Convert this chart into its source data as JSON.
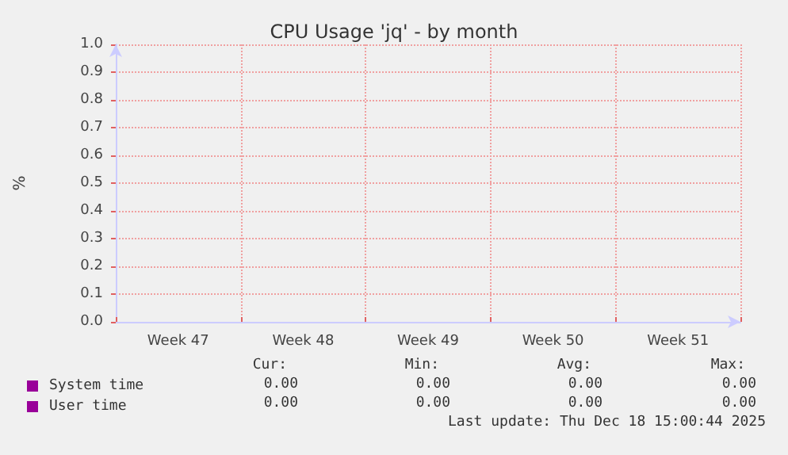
{
  "chart_data": {
    "type": "line",
    "title": "CPU Usage 'jq' - by month",
    "ylabel": "%",
    "categories": [
      "Week 47",
      "Week 48",
      "Week 49",
      "Week 50",
      "Week 51"
    ],
    "series": [
      {
        "name": "System time",
        "color": "#990099",
        "values": [
          null,
          null,
          null,
          null,
          null
        ]
      },
      {
        "name": "User time",
        "color": "#990099",
        "values": [
          null,
          null,
          null,
          null,
          null
        ]
      }
    ],
    "ylim": [
      0,
      1
    ],
    "yticks": [
      {
        "value": 0,
        "label": "0.0"
      },
      {
        "value": 0.1,
        "label": "0.1"
      },
      {
        "value": 0.2,
        "label": "0.2"
      },
      {
        "value": 0.3,
        "label": "0.3"
      },
      {
        "value": 0.4,
        "label": "0.4"
      },
      {
        "value": 0.5,
        "label": "0.5"
      },
      {
        "value": 0.6,
        "label": "0.6"
      },
      {
        "value": 0.7,
        "label": "0.7"
      },
      {
        "value": 0.8,
        "label": "0.8"
      },
      {
        "value": 0.9,
        "label": "0.9"
      },
      {
        "value": 1,
        "label": "1.0"
      }
    ],
    "grid": true,
    "legend": "bottom left",
    "annotations": [
      "Cur:",
      "Min:",
      "Avg:",
      "Max:",
      "0.00",
      "0.00",
      "0.00",
      "0.00",
      "0.00",
      "0.00",
      "0.00",
      "0.00",
      "Last update: Thu Dec 18 15:00:44 2025"
    ]
  }
}
